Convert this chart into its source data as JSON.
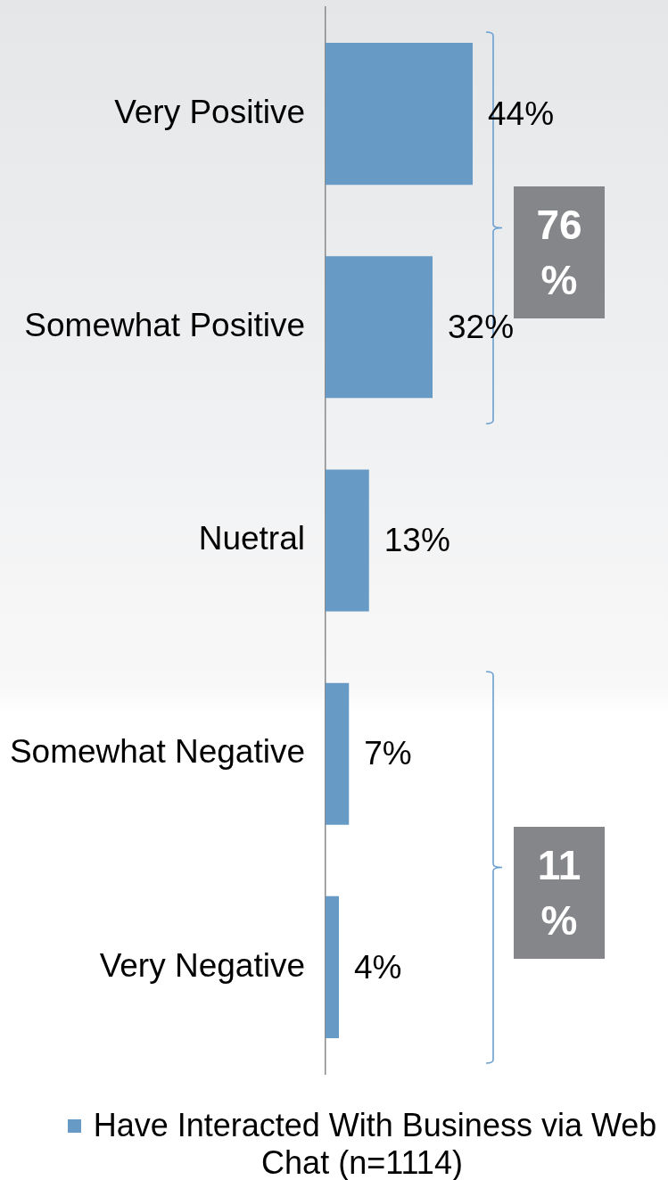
{
  "chart_data": {
    "type": "bar",
    "orientation": "horizontal",
    "categories": [
      "Very Positive",
      "Somewhat Positive",
      "Nuetral",
      "Somewhat Negative",
      "Very Negative"
    ],
    "series": [
      {
        "name": "Have Interacted With Business via Web Chat (n=1114)",
        "color": "#679bc5",
        "values": [
          44,
          32,
          13,
          7,
          4
        ],
        "value_labels": [
          "44%",
          "32%",
          "13%",
          "7%",
          "4%"
        ]
      }
    ],
    "legend": "bottom",
    "tick_labels": "y",
    "annotations": [
      "76%",
      "11%"
    ]
  }
}
